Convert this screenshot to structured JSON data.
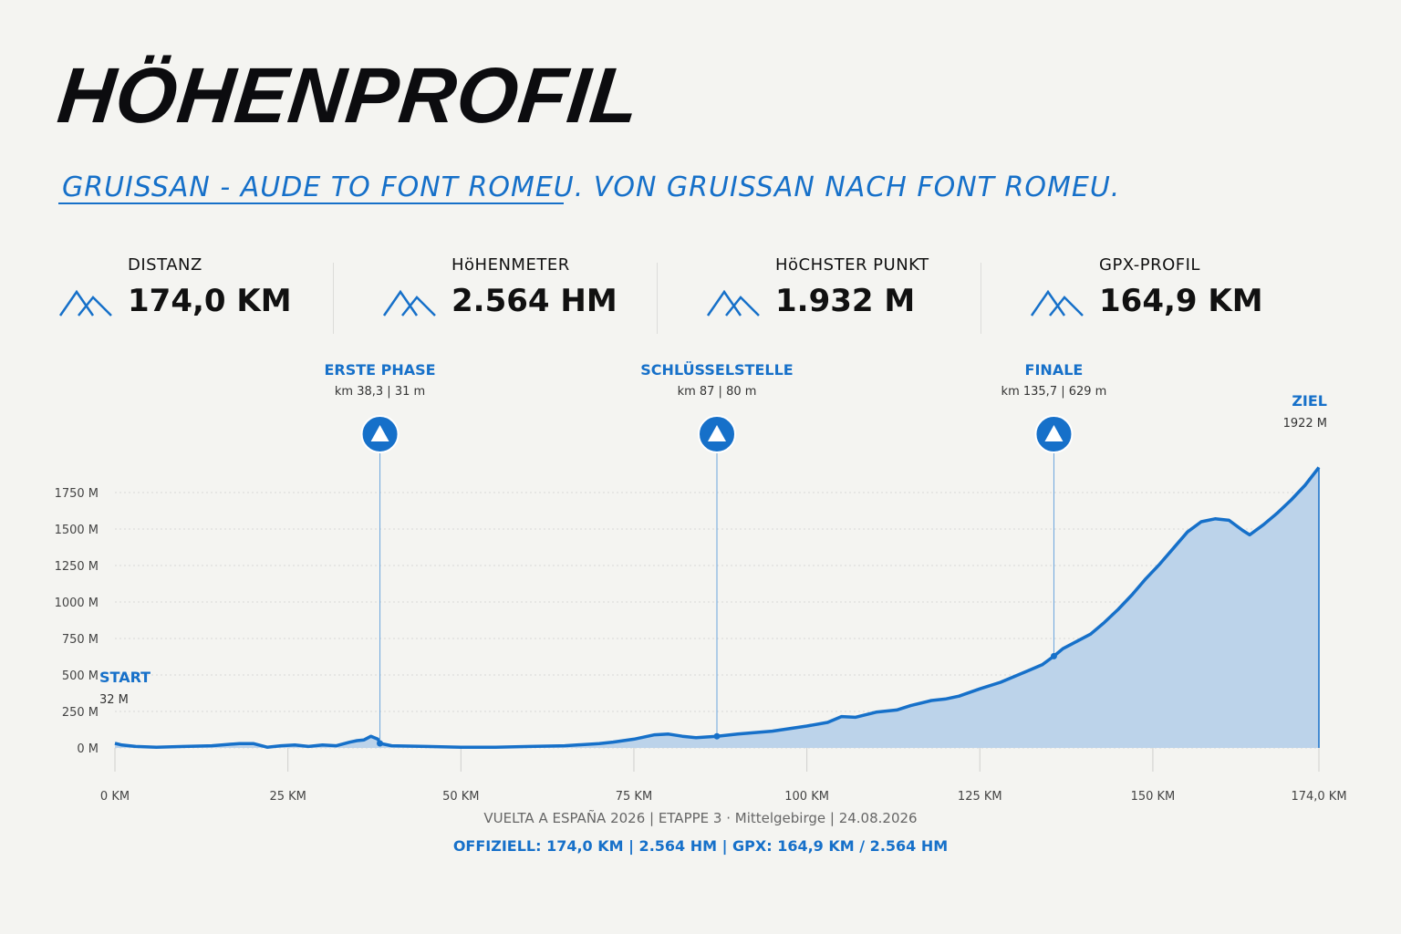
{
  "header": {
    "title": "HÖHENPROFIL",
    "subtitle": "GRUISSAN - AUDE TO FONT ROMEU. VON GRUISSAN NACH FONT ROMEU."
  },
  "stats": [
    {
      "label": "DISTANZ",
      "value": "174,0 KM",
      "icon": "mountain-icon"
    },
    {
      "label": "HöHENMETER",
      "value": "2.564 HM",
      "icon": "mountain-icon"
    },
    {
      "label": "HöCHSTER PUNKT",
      "value": "1.932 M",
      "icon": "mountain-icon"
    },
    {
      "label": "GPX-PROFIL",
      "value": "164,9 KM",
      "icon": "mountain-icon"
    }
  ],
  "colors": {
    "accent": "#1670c9",
    "area_fill": "#bcd3ea",
    "background": "#f4f4f1"
  },
  "chart_data": {
    "type": "area",
    "xlim": [
      0,
      174
    ],
    "ylim": [
      0,
      1750
    ],
    "x_ticks": [
      0,
      25,
      50,
      75,
      100,
      125,
      150,
      174
    ],
    "x_tick_labels": [
      "0 KM",
      "25 KM",
      "50 KM",
      "75 KM",
      "100 KM",
      "125 KM",
      "150 KM",
      "174,0 KM"
    ],
    "y_ticks": [
      0,
      250,
      500,
      750,
      1000,
      1250,
      1500,
      1750
    ],
    "y_tick_labels": [
      "0 M",
      "250 M",
      "500 M",
      "750 M",
      "1000 M",
      "1250 M",
      "1500 M",
      "1750 M"
    ],
    "grid": true,
    "series": [
      {
        "x": [
          0,
          1,
          3,
          6,
          10,
          14,
          18,
          20,
          22,
          24,
          26,
          28,
          30,
          32,
          34,
          35,
          36,
          37,
          38,
          38.3,
          40,
          45,
          50,
          55,
          60,
          65,
          70,
          72,
          75,
          78,
          80,
          82,
          84,
          87,
          90,
          95,
          100,
          103,
          105,
          107,
          110,
          113,
          115,
          118,
          120,
          122,
          125,
          128,
          130,
          132,
          134,
          135.7,
          137,
          139,
          141,
          143,
          145,
          147,
          149,
          151,
          153,
          155,
          157,
          159,
          161,
          163,
          164,
          166,
          168,
          170,
          172,
          174
        ],
        "y": [
          32,
          20,
          10,
          5,
          10,
          15,
          30,
          30,
          5,
          15,
          20,
          10,
          20,
          15,
          40,
          50,
          55,
          80,
          60,
          31,
          15,
          10,
          5,
          5,
          10,
          15,
          30,
          40,
          60,
          90,
          95,
          80,
          70,
          80,
          95,
          115,
          150,
          175,
          215,
          210,
          245,
          260,
          290,
          325,
          335,
          355,
          405,
          450,
          490,
          530,
          570,
          629,
          680,
          730,
          780,
          860,
          950,
          1050,
          1160,
          1260,
          1370,
          1480,
          1550,
          1570,
          1560,
          1490,
          1460,
          1530,
          1610,
          1700,
          1800,
          1922
        ]
      }
    ],
    "annotations": [
      {
        "name": "ERSTE PHASE",
        "detail": "km 38,3 | 31 m",
        "x": 38.3,
        "y": 31
      },
      {
        "name": "SCHLÜSSELSTELLE",
        "detail": "km 87 | 80 m",
        "x": 87,
        "y": 80
      },
      {
        "name": "FINALE",
        "detail": "km 135,7 | 629 m",
        "x": 135.7,
        "y": 629
      }
    ],
    "start": {
      "label": "START",
      "detail": "32 M"
    },
    "finish": {
      "label": "ZIEL",
      "detail": "1922 M"
    }
  },
  "footer": {
    "line1": "VUELTA A ESPAÑA 2026 | ETAPPE 3 · Mittelgebirge | 24.08.2026",
    "line2": "OFFIZIELL: 174,0 KM | 2.564 HM | GPX: 164,9 KM / 2.564 HM"
  }
}
